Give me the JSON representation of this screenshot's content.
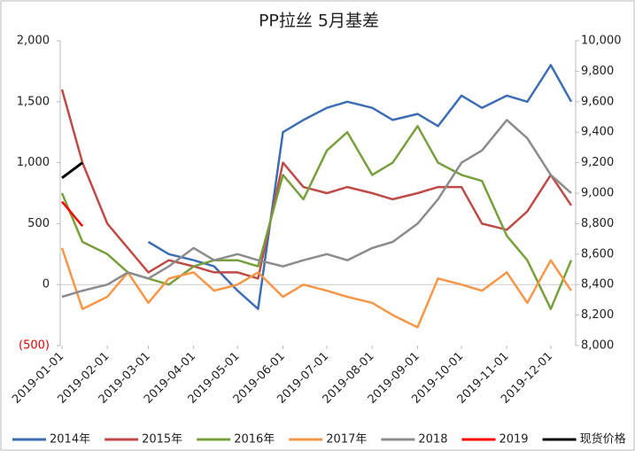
{
  "chart_data": {
    "type": "line",
    "title": "PP拉丝  5月基差",
    "x": [
      "2019-01-01",
      "2019-01-15",
      "2019-02-01",
      "2019-02-15",
      "2019-03-01",
      "2019-03-15",
      "2019-04-01",
      "2019-04-15",
      "2019-05-01",
      "2019-05-15",
      "2019-06-01",
      "2019-06-15",
      "2019-07-01",
      "2019-07-15",
      "2019-08-01",
      "2019-08-15",
      "2019-09-01",
      "2019-09-15",
      "2019-10-01",
      "2019-10-15",
      "2019-11-01",
      "2019-11-15",
      "2019-12-01",
      "2019-12-15"
    ],
    "xticks": [
      "2019-01-01",
      "2019-02-01",
      "2019-03-01",
      "2019-04-01",
      "2019-05-01",
      "2019-06-01",
      "2019-07-01",
      "2019-08-01",
      "2019-09-01",
      "2019-10-01",
      "2019-11-01",
      "2019-12-01"
    ],
    "ylim": [
      -500,
      2000
    ],
    "yticks": [
      {
        "value": -500,
        "label": "(500)"
      },
      0,
      500,
      {
        "value": 1000,
        "label": "1,000"
      },
      {
        "value": 1500,
        "label": "1,500"
      },
      {
        "value": 2000,
        "label": "2,000"
      }
    ],
    "y2lim": [
      8000,
      10000
    ],
    "y2ticks": [
      {
        "value": 8000,
        "label": "8,000"
      },
      {
        "value": 8200,
        "label": "8,200"
      },
      {
        "value": 8400,
        "label": "8,400"
      },
      {
        "value": 8600,
        "label": "8,600"
      },
      {
        "value": 8800,
        "label": "8,800"
      },
      {
        "value": 9000,
        "label": "9,000"
      },
      {
        "value": 9200,
        "label": "9,200"
      },
      {
        "value": 9400,
        "label": "9,400"
      },
      {
        "value": 9600,
        "label": "9,600"
      },
      {
        "value": 9800,
        "label": "9,800"
      },
      {
        "value": 10000,
        "label": "10,000"
      }
    ],
    "legend": "bottom",
    "series": [
      {
        "name": "2014年",
        "color": "#3d6db4",
        "values": [
          null,
          null,
          null,
          null,
          350,
          250,
          200,
          150,
          -50,
          -200,
          1250,
          1350,
          1450,
          1500,
          1450,
          1350,
          1400,
          1300,
          1550,
          1450,
          1550,
          1500,
          1800,
          1500
        ]
      },
      {
        "name": "2015年",
        "color": "#be4b48",
        "values": [
          1600,
          1000,
          500,
          300,
          100,
          200,
          150,
          100,
          100,
          50,
          1000,
          800,
          750,
          800,
          750,
          700,
          750,
          800,
          800,
          500,
          450,
          600,
          900,
          650
        ]
      },
      {
        "name": "2016年",
        "color": "#77a03c",
        "values": [
          750,
          350,
          250,
          100,
          50,
          0,
          150,
          200,
          200,
          150,
          900,
          700,
          1100,
          1250,
          900,
          1000,
          1300,
          1000,
          900,
          850,
          400,
          200,
          -200,
          200
        ]
      },
      {
        "name": "2017年",
        "color": "#f79646",
        "values": [
          300,
          -200,
          -100,
          100,
          -150,
          50,
          100,
          -50,
          0,
          100,
          -100,
          0,
          -50,
          -100,
          -150,
          -250,
          -350,
          50,
          0,
          -50,
          100,
          -150,
          200,
          -50
        ]
      },
      {
        "name": "2018",
        "color": "#8c8c8c",
        "values": [
          -100,
          -50,
          0,
          100,
          50,
          150,
          300,
          200,
          250,
          200,
          150,
          200,
          250,
          200,
          300,
          350,
          500,
          700,
          1000,
          1100,
          1350,
          1200,
          900,
          750
        ]
      },
      {
        "name": "2019",
        "color": "#ff0000",
        "values": [
          680,
          480,
          null,
          null,
          null,
          null,
          null,
          null,
          null,
          null,
          null,
          null,
          null,
          null,
          null,
          null,
          null,
          null,
          null,
          null,
          null,
          null,
          null,
          null
        ]
      },
      {
        "name": "现货价格",
        "color": "#000000",
        "axis": "y2",
        "values": [
          9100,
          9200,
          null,
          null,
          null,
          null,
          null,
          null,
          null,
          null,
          null,
          null,
          null,
          null,
          null,
          null,
          null,
          null,
          null,
          null,
          null,
          null,
          null,
          null
        ]
      }
    ]
  }
}
